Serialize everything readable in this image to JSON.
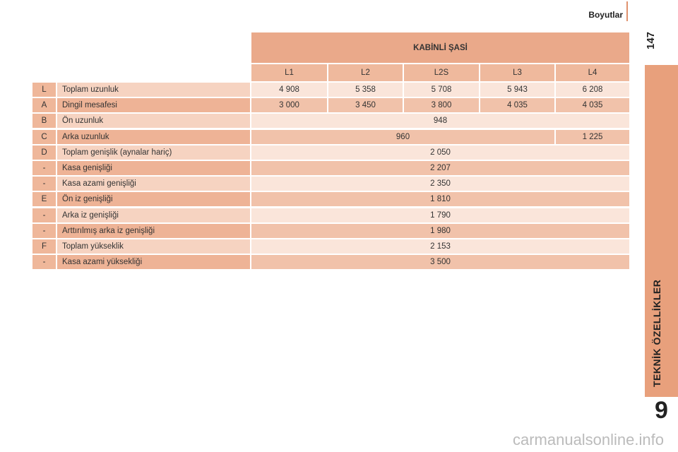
{
  "header": {
    "section": "Boyutlar",
    "page_number": "147"
  },
  "sidebar": {
    "chapter_title": "TEKNİK ÖZELLİKLER",
    "chapter_number": "9"
  },
  "table": {
    "title": "KABİNLİ ŞASİ",
    "columns": [
      "L1",
      "L2",
      "L2S",
      "L3",
      "L4"
    ],
    "rows": [
      {
        "code": "L",
        "label": "Toplam uzunluk",
        "values": [
          "4 908",
          "5 358",
          "5 708",
          "5 943",
          "6 208"
        ]
      },
      {
        "code": "A",
        "label": "Dingil mesafesi",
        "values": [
          "3 000",
          "3 450",
          "3 800",
          "4 035",
          "4 035"
        ]
      },
      {
        "code": "B",
        "label": "Ön uzunluk",
        "values": [
          "948"
        ]
      },
      {
        "code": "C",
        "label": "Arka uzunluk",
        "values": [
          "960",
          "1 225"
        ]
      },
      {
        "code": "D",
        "label": "Toplam genişlik (aynalar hariç)",
        "values": [
          "2 050"
        ]
      },
      {
        "code": "-",
        "label": "Kasa genişliği",
        "values": [
          "2 207"
        ]
      },
      {
        "code": "-",
        "label": "Kasa azami genişliği",
        "values": [
          "2 350"
        ]
      },
      {
        "code": "E",
        "label": "Ön iz genişliği",
        "values": [
          "1 810"
        ]
      },
      {
        "code": "-",
        "label": "Arka iz genişliği",
        "values": [
          "1 790"
        ]
      },
      {
        "code": "-",
        "label": "Arttırılmış arka iz genişliği",
        "values": [
          "1 980"
        ]
      },
      {
        "code": "F",
        "label": "Toplam yükseklik",
        "values": [
          "2 153"
        ]
      },
      {
        "code": "-",
        "label": "Kasa azami yüksekliği",
        "values": [
          "3 500"
        ]
      }
    ]
  },
  "watermark": "carmanualsonline.info"
}
